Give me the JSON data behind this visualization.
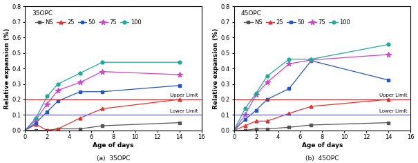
{
  "days": [
    0,
    1,
    2,
    3,
    5,
    7,
    14
  ],
  "chart_a": {
    "title": "35OPC",
    "NS": [
      0.0,
      0.0,
      0.0,
      0.01,
      0.01,
      0.03,
      0.05
    ],
    "25": [
      0.0,
      0.04,
      0.0,
      0.01,
      0.08,
      0.14,
      0.2
    ],
    "50": [
      0.0,
      0.05,
      0.12,
      0.19,
      0.25,
      0.25,
      0.29
    ],
    "75": [
      0.0,
      0.07,
      0.17,
      0.26,
      0.31,
      0.38,
      0.36
    ],
    "100": [
      0.0,
      0.08,
      0.22,
      0.3,
      0.37,
      0.44,
      0.44
    ]
  },
  "chart_b": {
    "title": "45OPC",
    "NS": [
      0.0,
      0.0,
      0.01,
      0.01,
      0.02,
      0.035,
      0.05
    ],
    "25": [
      0.0,
      0.03,
      0.06,
      0.06,
      0.11,
      0.155,
      0.2
    ],
    "50": [
      0.0,
      0.07,
      0.13,
      0.2,
      0.27,
      0.45,
      0.325
    ],
    "75": [
      0.0,
      0.1,
      0.23,
      0.31,
      0.43,
      0.455,
      0.49
    ],
    "100": [
      0.0,
      0.14,
      0.24,
      0.35,
      0.46,
      0.46,
      0.555
    ]
  },
  "upper_limit": 0.2,
  "lower_limit": 0.1,
  "ylim": [
    0.0,
    0.8
  ],
  "xlim": [
    0,
    16
  ],
  "yticks": [
    0.0,
    0.1,
    0.2,
    0.3,
    0.4,
    0.5,
    0.6,
    0.7,
    0.8
  ],
  "xticks": [
    0,
    2,
    4,
    6,
    8,
    10,
    12,
    14,
    16
  ],
  "xlabel": "Age of days",
  "ylabel": "Relative expansion (%)",
  "legend_labels": [
    "NS",
    "25",
    "50",
    "75",
    "100"
  ],
  "series_colors": {
    "NS": "#555555",
    "25": "#e63030",
    "50": "#2255cc",
    "75": "#cc44cc",
    "100": "#22aa99"
  },
  "series_markers": {
    "NS": "s",
    "25": "^",
    "50": "s",
    "75": "*",
    "100": "o"
  },
  "upper_limit_color": "#cc2222",
  "lower_limit_color": "#5555cc",
  "upper_limit_label": "Upper Limit",
  "lower_limit_label": "Lower Limit",
  "subtitle_a": "(a)  35OPC",
  "subtitle_b": "(b)  45OPC",
  "title_fontsize": 6.5,
  "label_fontsize": 6.5,
  "tick_fontsize": 6,
  "legend_fontsize": 6.0,
  "limit_label_fontsize": 5.0
}
